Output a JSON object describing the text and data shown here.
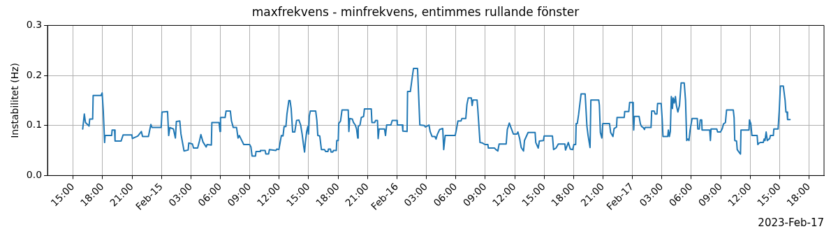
{
  "chart_data": {
    "type": "line",
    "title": "maxfrekvens - minfrekvens, entimmes rullande fönster",
    "ylabel": "Instabilitet (Hz)",
    "annotations": [
      "2023-Feb-17"
    ],
    "x": [
      "2023-02-14T15:58",
      "2023-02-14T16:08",
      "2023-02-14T16:15",
      "2023-02-14T16:37",
      "2023-02-14T16:41",
      "2023-02-14T16:59",
      "2023-02-14T17:02",
      "2023-02-14T17:50",
      "2023-02-14T17:57",
      "2023-02-14T18:04",
      "2023-02-14T18:12",
      "2023-02-14T18:15",
      "2023-02-14T18:55",
      "2023-02-14T18:58",
      "2023-02-14T19:13",
      "2023-02-14T19:16",
      "2023-02-14T19:53",
      "2023-02-14T20:05",
      "2023-02-14T20:59",
      "2023-02-14T21:02",
      "2023-02-14T21:35",
      "2023-02-14T21:57",
      "2023-02-14T22:04",
      "2023-02-14T22:40",
      "2023-02-14T22:55",
      "2023-02-14T23:02",
      "2023-02-14T23:58",
      "2023-02-15T00:03",
      "2023-02-15T00:37",
      "2023-02-15T00:44",
      "2023-02-15T00:51",
      "2023-02-15T01:13",
      "2023-02-15T01:25",
      "2023-02-15T01:31",
      "2023-02-15T01:52",
      "2023-02-15T01:59",
      "2023-02-15T02:18",
      "2023-02-15T02:43",
      "2023-02-15T02:47",
      "2023-02-15T03:09",
      "2023-02-15T03:16",
      "2023-02-15T03:41",
      "2023-02-15T03:53",
      "2023-02-15T04:01",
      "2023-02-15T04:14",
      "2023-02-15T04:33",
      "2023-02-15T04:39",
      "2023-02-15T05:05",
      "2023-02-15T05:08",
      "2023-02-15T05:52",
      "2023-02-15T05:58",
      "2023-02-15T06:01",
      "2023-02-15T06:29",
      "2023-02-15T06:35",
      "2023-02-15T07:01",
      "2023-02-15T07:08",
      "2023-02-15T07:19",
      "2023-02-15T07:39",
      "2023-02-15T07:48",
      "2023-02-15T07:56",
      "2023-02-15T08:23",
      "2023-02-15T08:43",
      "2023-02-15T08:59",
      "2023-02-15T09:07",
      "2023-02-15T09:14",
      "2023-02-15T09:35",
      "2023-02-15T09:38",
      "2023-02-15T10:02",
      "2023-02-15T10:05",
      "2023-02-15T10:34",
      "2023-02-15T10:38",
      "2023-02-15T10:55",
      "2023-02-15T11:00",
      "2023-02-15T11:39",
      "2023-02-15T11:46",
      "2023-02-15T11:58",
      "2023-02-15T12:05",
      "2023-02-15T12:13",
      "2023-02-15T12:23",
      "2023-02-15T12:30",
      "2023-02-15T12:41",
      "2023-02-15T12:47",
      "2023-02-15T12:59",
      "2023-02-15T13:06",
      "2023-02-15T13:13",
      "2023-02-15T13:22",
      "2023-02-15T13:35",
      "2023-02-15T13:46",
      "2023-02-15T14:00",
      "2023-02-15T14:11",
      "2023-02-15T14:20",
      "2023-02-15T14:29",
      "2023-02-15T14:35",
      "2023-02-15T14:40",
      "2023-02-15T14:48",
      "2023-02-15T14:55",
      "2023-02-15T14:59",
      "2023-02-15T15:04",
      "2023-02-15T15:10",
      "2023-02-15T15:43",
      "2023-02-15T15:50",
      "2023-02-15T15:56",
      "2023-02-15T16:08",
      "2023-02-15T16:18",
      "2023-02-15T16:37",
      "2023-02-15T16:44",
      "2023-02-15T16:58",
      "2023-02-15T17:01",
      "2023-02-15T17:13",
      "2023-02-15T17:17",
      "2023-02-15T17:27",
      "2023-02-15T17:32",
      "2023-02-15T17:49",
      "2023-02-15T17:52",
      "2023-02-15T18:01",
      "2023-02-15T18:04",
      "2023-02-15T18:15",
      "2023-02-15T18:24",
      "2023-02-15T19:02",
      "2023-02-15T19:06",
      "2023-02-15T19:11",
      "2023-02-15T19:27",
      "2023-02-15T19:34",
      "2023-02-15T19:45",
      "2023-02-15T19:53",
      "2023-02-15T20:00",
      "2023-02-15T20:03",
      "2023-02-15T20:14",
      "2023-02-15T20:22",
      "2023-02-15T20:36",
      "2023-02-15T20:41",
      "2023-02-15T21:23",
      "2023-02-15T21:27",
      "2023-02-15T21:44",
      "2023-02-15T21:49",
      "2023-02-15T22:01",
      "2023-02-15T22:05",
      "2023-02-15T22:11",
      "2023-02-15T22:44",
      "2023-02-15T22:50",
      "2023-02-15T22:57",
      "2023-02-15T23:23",
      "2023-02-15T23:31",
      "2023-02-16T00:00",
      "2023-02-16T00:02",
      "2023-02-16T00:33",
      "2023-02-16T00:36",
      "2023-02-16T01:02",
      "2023-02-16T01:05",
      "2023-02-16T01:22",
      "2023-02-16T01:31",
      "2023-02-16T01:41",
      "2023-02-16T02:06",
      "2023-02-16T02:20",
      "2023-02-16T02:47",
      "2023-02-16T02:54",
      "2023-02-16T03:16",
      "2023-02-16T03:23",
      "2023-02-16T03:35",
      "2023-02-16T03:52",
      "2023-02-16T03:59",
      "2023-02-16T04:07",
      "2023-02-16T04:21",
      "2023-02-16T04:40",
      "2023-02-16T04:46",
      "2023-02-16T04:55",
      "2023-02-16T05:56",
      "2023-02-16T06:03",
      "2023-02-16T06:13",
      "2023-02-16T06:32",
      "2023-02-16T06:37",
      "2023-02-16T07:01",
      "2023-02-16T07:08",
      "2023-02-16T07:16",
      "2023-02-16T07:35",
      "2023-02-16T07:40",
      "2023-02-16T07:45",
      "2023-02-16T08:10",
      "2023-02-16T08:14",
      "2023-02-16T08:28",
      "2023-02-16T08:43",
      "2023-02-16T08:58",
      "2023-02-16T09:16",
      "2023-02-16T09:19",
      "2023-02-16T09:56",
      "2023-02-16T10:05",
      "2023-02-16T10:17",
      "2023-02-16T10:25",
      "2023-02-16T11:08",
      "2023-02-16T11:15",
      "2023-02-16T11:27",
      "2023-02-16T11:37",
      "2023-02-16T11:52",
      "2023-02-16T12:13",
      "2023-02-16T12:20",
      "2023-02-16T12:31",
      "2023-02-16T12:40",
      "2023-02-16T12:54",
      "2023-02-16T13:00",
      "2023-02-16T13:22",
      "2023-02-16T14:05",
      "2023-02-16T14:09",
      "2023-02-16T14:24",
      "2023-02-16T14:31",
      "2023-02-16T14:56",
      "2023-02-16T15:00",
      "2023-02-16T15:51",
      "2023-02-16T15:58",
      "2023-02-16T16:13",
      "2023-02-16T16:27",
      "2023-02-16T17:07",
      "2023-02-16T17:11",
      "2023-02-16T17:28",
      "2023-02-16T17:40",
      "2023-02-16T17:55",
      "2023-02-16T18:02",
      "2023-02-16T18:13",
      "2023-02-16T18:16",
      "2023-02-16T18:23",
      "2023-02-16T18:31",
      "2023-02-16T18:46",
      "2023-02-16T19:11",
      "2023-02-16T19:22",
      "2023-02-16T19:29",
      "2023-02-16T19:41",
      "2023-02-16T19:46",
      "2023-02-16T20:34",
      "2023-02-16T20:38",
      "2023-02-16T20:44",
      "2023-02-16T20:53",
      "2023-02-16T20:59",
      "2023-02-16T21:40",
      "2023-02-16T21:47",
      "2023-02-16T22:01",
      "2023-02-16T22:08",
      "2023-02-16T22:23",
      "2023-02-16T22:26",
      "2023-02-16T23:10",
      "2023-02-16T23:13",
      "2023-02-16T23:38",
      "2023-02-16T23:43",
      "2023-02-17T00:02",
      "2023-02-17T00:05",
      "2023-02-17T00:08",
      "2023-02-17T00:12",
      "2023-02-17T00:41",
      "2023-02-17T00:49",
      "2023-02-17T00:56",
      "2023-02-17T01:06",
      "2023-02-17T01:14",
      "2023-02-17T01:17",
      "2023-02-17T01:54",
      "2023-02-17T01:58",
      "2023-02-17T02:13",
      "2023-02-17T02:19",
      "2023-02-17T02:30",
      "2023-02-17T02:34",
      "2023-02-17T02:56",
      "2023-02-17T03:02",
      "2023-02-17T03:07",
      "2023-02-17T03:36",
      "2023-02-17T03:40",
      "2023-02-17T03:46",
      "2023-02-17T03:52",
      "2023-02-17T03:58",
      "2023-02-17T04:05",
      "2023-02-17T04:09",
      "2023-02-17T04:16",
      "2023-02-17T04:23",
      "2023-02-17T04:29",
      "2023-02-17T04:38",
      "2023-02-17T04:48",
      "2023-02-17T04:58",
      "2023-02-17T05:17",
      "2023-02-17T05:25",
      "2023-02-17T05:32",
      "2023-02-17T05:39",
      "2023-02-17T05:46",
      "2023-02-17T05:53",
      "2023-02-17T06:05",
      "2023-02-17T06:37",
      "2023-02-17T06:40",
      "2023-02-17T06:49",
      "2023-02-17T06:55",
      "2023-02-17T07:04",
      "2023-02-17T07:06",
      "2023-02-17T07:53",
      "2023-02-17T07:57",
      "2023-02-17T08:01",
      "2023-02-17T08:36",
      "2023-02-17T08:41",
      "2023-02-17T08:59",
      "2023-02-17T09:10",
      "2023-02-17T09:17",
      "2023-02-17T09:29",
      "2023-02-17T09:36",
      "2023-02-17T10:17",
      "2023-02-17T10:22",
      "2023-02-17T10:26",
      "2023-02-17T10:37",
      "2023-02-17T10:41",
      "2023-02-17T10:51",
      "2023-02-17T11:01",
      "2023-02-17T11:04",
      "2023-02-17T11:53",
      "2023-02-17T11:56",
      "2023-02-17T12:04",
      "2023-02-17T12:11",
      "2023-02-17T12:43",
      "2023-02-17T12:47",
      "2023-02-17T12:55",
      "2023-02-17T13:02",
      "2023-02-17T13:20",
      "2023-02-17T13:26",
      "2023-02-17T13:31",
      "2023-02-17T13:38",
      "2023-02-17T13:45",
      "2023-02-17T14:00",
      "2023-02-17T14:04",
      "2023-02-17T14:22",
      "2023-02-17T14:25",
      "2023-02-17T14:51",
      "2023-02-17T14:58",
      "2023-02-17T15:05",
      "2023-02-17T15:23",
      "2023-02-17T15:34",
      "2023-02-17T15:39",
      "2023-02-17T15:46",
      "2023-02-17T15:49",
      "2023-02-17T16:04"
    ],
    "series": [
      {
        "color": "#1f77b4",
        "values": [
          0.093,
          0.123,
          0.106,
          0.099,
          0.113,
          0.113,
          0.16,
          0.16,
          0.165,
          0.129,
          0.066,
          0.08,
          0.08,
          0.091,
          0.091,
          0.069,
          0.069,
          0.081,
          0.081,
          0.074,
          0.079,
          0.088,
          0.078,
          0.078,
          0.102,
          0.096,
          0.096,
          0.127,
          0.128,
          0.08,
          0.096,
          0.093,
          0.075,
          0.108,
          0.109,
          0.083,
          0.049,
          0.051,
          0.065,
          0.063,
          0.055,
          0.055,
          0.07,
          0.082,
          0.067,
          0.057,
          0.062,
          0.061,
          0.106,
          0.106,
          0.088,
          0.116,
          0.116,
          0.129,
          0.129,
          0.109,
          0.096,
          0.096,
          0.075,
          0.08,
          0.062,
          0.062,
          0.062,
          0.057,
          0.039,
          0.039,
          0.048,
          0.048,
          0.05,
          0.05,
          0.043,
          0.043,
          0.052,
          0.05,
          0.053,
          0.052,
          0.065,
          0.08,
          0.079,
          0.098,
          0.098,
          0.122,
          0.15,
          0.15,
          0.134,
          0.087,
          0.087,
          0.11,
          0.111,
          0.101,
          0.083,
          0.06,
          0.047,
          0.067,
          0.088,
          0.098,
          0.083,
          0.119,
          0.129,
          0.129,
          0.111,
          0.08,
          0.079,
          0.052,
          0.052,
          0.048,
          0.048,
          0.053,
          0.053,
          0.047,
          0.047,
          0.05,
          0.05,
          0.07,
          0.07,
          0.104,
          0.109,
          0.131,
          0.131,
          0.088,
          0.114,
          0.113,
          0.106,
          0.101,
          0.093,
          0.075,
          0.098,
          0.101,
          0.116,
          0.118,
          0.133,
          0.133,
          0.106,
          0.106,
          0.11,
          0.11,
          0.074,
          0.093,
          0.093,
          0.08,
          0.101,
          0.101,
          0.11,
          0.11,
          0.101,
          0.101,
          0.089,
          0.088,
          0.168,
          0.168,
          0.19,
          0.214,
          0.214,
          0.101,
          0.1,
          0.097,
          0.101,
          0.088,
          0.078,
          0.078,
          0.073,
          0.082,
          0.092,
          0.094,
          0.052,
          0.08,
          0.08,
          0.091,
          0.109,
          0.109,
          0.114,
          0.114,
          0.142,
          0.155,
          0.155,
          0.14,
          0.151,
          0.151,
          0.135,
          0.066,
          0.065,
          0.062,
          0.062,
          0.055,
          0.055,
          0.052,
          0.049,
          0.063,
          0.063,
          0.092,
          0.105,
          0.096,
          0.083,
          0.083,
          0.087,
          0.073,
          0.056,
          0.049,
          0.07,
          0.086,
          0.086,
          0.066,
          0.055,
          0.069,
          0.07,
          0.079,
          0.079,
          0.052,
          0.055,
          0.063,
          0.063,
          0.051,
          0.066,
          0.053,
          0.052,
          0.062,
          0.062,
          0.104,
          0.104,
          0.122,
          0.163,
          0.163,
          0.098,
          0.08,
          0.056,
          0.151,
          0.151,
          0.141,
          0.086,
          0.075,
          0.104,
          0.104,
          0.086,
          0.078,
          0.094,
          0.097,
          0.116,
          0.116,
          0.128,
          0.128,
          0.146,
          0.146,
          0.119,
          0.091,
          0.118,
          0.118,
          0.103,
          0.098,
          0.096,
          0.092,
          0.096,
          0.096,
          0.129,
          0.129,
          0.123,
          0.123,
          0.144,
          0.144,
          0.114,
          0.078,
          0.078,
          0.091,
          0.078,
          0.088,
          0.158,
          0.134,
          0.155,
          0.145,
          0.158,
          0.14,
          0.127,
          0.14,
          0.185,
          0.185,
          0.15,
          0.07,
          0.073,
          0.07,
          0.091,
          0.114,
          0.114,
          0.093,
          0.093,
          0.111,
          0.111,
          0.091,
          0.091,
          0.07,
          0.093,
          0.093,
          0.087,
          0.087,
          0.094,
          0.103,
          0.106,
          0.131,
          0.131,
          0.116,
          0.07,
          0.069,
          0.052,
          0.047,
          0.043,
          0.091,
          0.091,
          0.111,
          0.104,
          0.08,
          0.08,
          0.062,
          0.065,
          0.066,
          0.066,
          0.073,
          0.07,
          0.087,
          0.07,
          0.074,
          0.08,
          0.08,
          0.093,
          0.093,
          0.129,
          0.179,
          0.179,
          0.15,
          0.127,
          0.127,
          0.112,
          0.112
        ]
      }
    ],
    "xlim": [
      "2023-02-14T12:23",
      "2023-02-17T19:32"
    ],
    "xticks": [
      {
        "value": "2023-02-14T15:00",
        "label": "15:00"
      },
      {
        "value": "2023-02-14T18:00",
        "label": "18:00"
      },
      {
        "value": "2023-02-14T21:00",
        "label": "21:00"
      },
      {
        "value": "2023-02-15T00:00",
        "label": "Feb-15"
      },
      {
        "value": "2023-02-15T03:00",
        "label": "03:00"
      },
      {
        "value": "2023-02-15T06:00",
        "label": "06:00"
      },
      {
        "value": "2023-02-15T09:00",
        "label": "09:00"
      },
      {
        "value": "2023-02-15T12:00",
        "label": "12:00"
      },
      {
        "value": "2023-02-15T15:00",
        "label": "15:00"
      },
      {
        "value": "2023-02-15T18:00",
        "label": "18:00"
      },
      {
        "value": "2023-02-15T21:00",
        "label": "21:00"
      },
      {
        "value": "2023-02-16T00:00",
        "label": "Feb-16"
      },
      {
        "value": "2023-02-16T03:00",
        "label": "03:00"
      },
      {
        "value": "2023-02-16T06:00",
        "label": "06:00"
      },
      {
        "value": "2023-02-16T09:00",
        "label": "09:00"
      },
      {
        "value": "2023-02-16T12:00",
        "label": "12:00"
      },
      {
        "value": "2023-02-16T15:00",
        "label": "15:00"
      },
      {
        "value": "2023-02-16T18:00",
        "label": "18:00"
      },
      {
        "value": "2023-02-16T21:00",
        "label": "21:00"
      },
      {
        "value": "2023-02-17T00:00",
        "label": "Feb-17"
      },
      {
        "value": "2023-02-17T03:00",
        "label": "03:00"
      },
      {
        "value": "2023-02-17T06:00",
        "label": "06:00"
      },
      {
        "value": "2023-02-17T09:00",
        "label": "09:00"
      },
      {
        "value": "2023-02-17T12:00",
        "label": "12:00"
      },
      {
        "value": "2023-02-17T15:00",
        "label": "15:00"
      },
      {
        "value": "2023-02-17T18:00",
        "label": "18:00"
      }
    ],
    "ylim": [
      0,
      0.3
    ],
    "yticks": [
      {
        "value": 0,
        "label": "0.0"
      },
      0.1,
      0.2,
      0.3
    ],
    "grid": true,
    "legend": false,
    "marker": "none",
    "line_style": "solid"
  }
}
